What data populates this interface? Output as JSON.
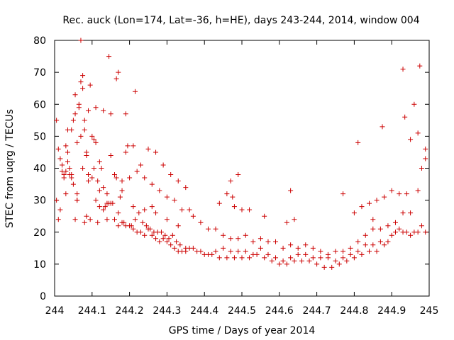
{
  "chart_data": {
    "type": "scatter",
    "title": "Rec. auck (Lon=174, Lat=-36, h=HE), days 243-244, 2014, window 004",
    "xlabel": "GPS time / Days of year 2014",
    "ylabel": "STEC from uqrg / TECUs",
    "xlim": [
      244,
      245
    ],
    "ylim": [
      0,
      80
    ],
    "x_ticks": [
      "244",
      "244.1",
      "244.2",
      "244.3",
      "244.4",
      "244.5",
      "244.6",
      "244.7",
      "244.8",
      "244.9",
      "245"
    ],
    "y_ticks": [
      "0",
      "10",
      "20",
      "30",
      "40",
      "50",
      "60",
      "70",
      "80"
    ],
    "grid": false,
    "legend": "none",
    "marker": "+",
    "marker_color": "#cc0000",
    "series": [
      {
        "x": [
          244.005,
          244.01,
          244.015,
          244.02,
          244.025,
          244.03,
          244.035,
          244.04,
          244.045,
          244.05,
          244.055,
          244.06,
          244.065,
          244.07,
          244.075,
          244.08,
          244.085,
          244.09,
          244.095,
          244.1,
          244.105,
          244.11,
          244.115,
          244.12,
          244.13,
          244.14,
          244.15,
          244.16,
          244.17,
          244.18,
          244.19,
          244.2,
          244.21,
          244.22,
          244.23,
          244.24,
          244.25,
          244.26,
          244.27,
          244.28,
          244.29,
          244.3,
          244.31,
          244.32,
          244.33,
          244.34,
          244.35,
          244.36,
          244.38,
          244.4,
          244.42,
          244.44,
          244.46,
          244.48,
          244.5,
          244.52,
          244.54,
          244.56,
          244.58,
          244.6,
          244.62,
          244.64,
          244.66,
          244.68,
          244.7,
          244.72,
          244.74,
          244.76,
          244.78,
          244.8,
          244.82,
          244.84,
          244.86,
          244.88,
          244.9,
          244.92,
          244.94,
          244.96,
          244.98,
          244.005,
          244.015,
          244.025,
          244.035,
          244.045,
          244.055,
          244.065,
          244.075,
          244.085,
          244.095,
          244.105,
          244.115,
          244.125,
          244.135,
          244.145,
          244.155,
          244.165,
          244.175,
          244.185,
          244.195,
          244.205,
          244.215,
          244.225,
          244.235,
          244.245,
          244.255,
          244.265,
          244.275,
          244.285,
          244.295,
          244.305,
          244.315,
          244.325,
          244.335,
          244.35,
          244.37,
          244.39,
          244.41,
          244.43,
          244.45,
          244.47,
          244.49,
          244.51,
          244.53,
          244.55,
          244.57,
          244.59,
          244.61,
          244.63,
          244.65,
          244.67,
          244.69,
          244.71,
          244.73,
          244.75,
          244.77,
          244.79,
          244.81,
          244.83,
          244.85,
          244.87,
          244.89,
          244.91,
          244.93,
          244.95,
          244.97,
          244.99,
          244.01,
          244.03,
          244.05,
          244.07,
          244.09,
          244.11,
          244.13,
          244.15,
          244.17,
          244.19,
          244.21,
          244.23,
          244.25,
          244.27,
          244.29,
          244.31,
          244.33,
          244.35,
          244.37,
          244.39,
          244.41,
          244.43,
          244.45,
          244.47,
          244.49,
          244.51,
          244.53,
          244.55,
          244.57,
          244.59,
          244.61,
          244.63,
          244.65,
          244.67,
          244.69,
          244.71,
          244.73,
          244.75,
          244.77,
          244.79,
          244.81,
          244.83,
          244.85,
          244.87,
          244.89,
          244.91,
          244.93,
          244.95,
          244.97,
          244.99,
          244.02,
          244.04,
          244.06,
          244.08,
          244.1,
          244.12,
          244.14,
          244.16,
          244.18,
          244.2,
          244.22,
          244.24,
          244.26,
          244.28,
          244.3,
          244.32,
          244.34,
          244.36,
          244.44,
          244.46,
          244.48,
          244.5,
          244.52,
          244.56,
          244.62,
          244.64,
          244.8,
          244.82,
          244.84,
          244.86,
          244.88,
          244.9,
          244.92,
          244.94,
          244.96,
          244.98,
          244.03,
          244.06,
          244.09,
          244.12,
          244.15,
          244.18,
          244.21,
          244.24,
          244.27,
          244.3,
          244.33,
          244.47,
          244.49,
          244.85,
          244.875,
          244.93,
          244.95,
          244.97,
          244.99,
          244.07,
          244.145,
          244.165,
          244.055,
          244.08,
          244.215,
          244.935,
          244.975,
          244.81,
          244.63,
          244.475,
          244.77,
          244.19,
          244.11,
          244.035,
          244.06,
          244.085,
          244.14,
          244.17,
          244.26,
          244.045,
          244.075,
          244.13
        ],
        "y": [
          30,
          24,
          43,
          39,
          38,
          47,
          52,
          40,
          37,
          35,
          24,
          30,
          60,
          67,
          40,
          23,
          45,
          36,
          24,
          50,
          49,
          30,
          23,
          28,
          27,
          32,
          44,
          24,
          22,
          23,
          22,
          22,
          21,
          20,
          20,
          19,
          21,
          19,
          18,
          17,
          18,
          17,
          16,
          15,
          14,
          14,
          14,
          15,
          14,
          13,
          13,
          12,
          12,
          12,
          12,
          12,
          13,
          12,
          11,
          10,
          10,
          11,
          11,
          11,
          10,
          9,
          9,
          10,
          11,
          12,
          13,
          14,
          14,
          16,
          19,
          21,
          20,
          20,
          22,
          55,
          27,
          37,
          45,
          52,
          57,
          59,
          65,
          44,
          66,
          40,
          36,
          40,
          28,
          29,
          29,
          37,
          31,
          23,
          47,
          22,
          24,
          26,
          23,
          22,
          21,
          20,
          20,
          20,
          19,
          18,
          19,
          17,
          16,
          15,
          15,
          14,
          13,
          14,
          15,
          14,
          14,
          14,
          13,
          15,
          13,
          12,
          11,
          12,
          13,
          13,
          12,
          12,
          12,
          11,
          12,
          13,
          14,
          16,
          16,
          17,
          17,
          20,
          20,
          19,
          20,
          20,
          46,
          39,
          55,
          50,
          58,
          48,
          58,
          57,
          70,
          57,
          47,
          41,
          46,
          45,
          41,
          38,
          36,
          34,
          25,
          23,
          21,
          21,
          19,
          18,
          18,
          19,
          17,
          18,
          17,
          17,
          15,
          16,
          15,
          16,
          15,
          14,
          13,
          14,
          14,
          15,
          17,
          19,
          21,
          21,
          22,
          23,
          26,
          26,
          33,
          46,
          41,
          38,
          48,
          52,
          37,
          42,
          29,
          38,
          36,
          37,
          39,
          37,
          35,
          33,
          31,
          30,
          27,
          27,
          29,
          32,
          28,
          27,
          27,
          25,
          23,
          24,
          26,
          28,
          29,
          30,
          31,
          33,
          32,
          32,
          60,
          40,
          32,
          30,
          38,
          33,
          29,
          33,
          28,
          27,
          26,
          24,
          22,
          36,
          38,
          24,
          53,
          71,
          49,
          51,
          43,
          80,
          75,
          68,
          63,
          55,
          64,
          56,
          72,
          48,
          33,
          31,
          32,
          45,
          59,
          42,
          32,
          25,
          24,
          26,
          28,
          38,
          69,
          34
        ]
      }
    ]
  }
}
